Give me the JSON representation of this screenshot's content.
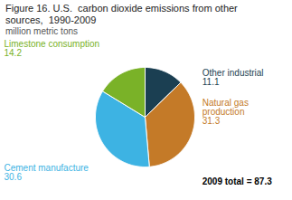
{
  "chart_data": {
    "type": "pie",
    "title": "Figure 16. U.S.  carbon dioxide emissions from other\nsources,  1990-2009",
    "subtitle": "million metric tons",
    "categories": [
      "Other industrial",
      "Natural gas\nproduction",
      "Cement manufacture",
      "Limestone consumption"
    ],
    "values": [
      11.1,
      31.3,
      30.6,
      14.2
    ],
    "colors": [
      "#1b3f52",
      "#c47a28",
      "#3db3e3",
      "#7ab228"
    ],
    "data_labels": true,
    "annotations": [
      "2009 total = 87.3"
    ]
  }
}
